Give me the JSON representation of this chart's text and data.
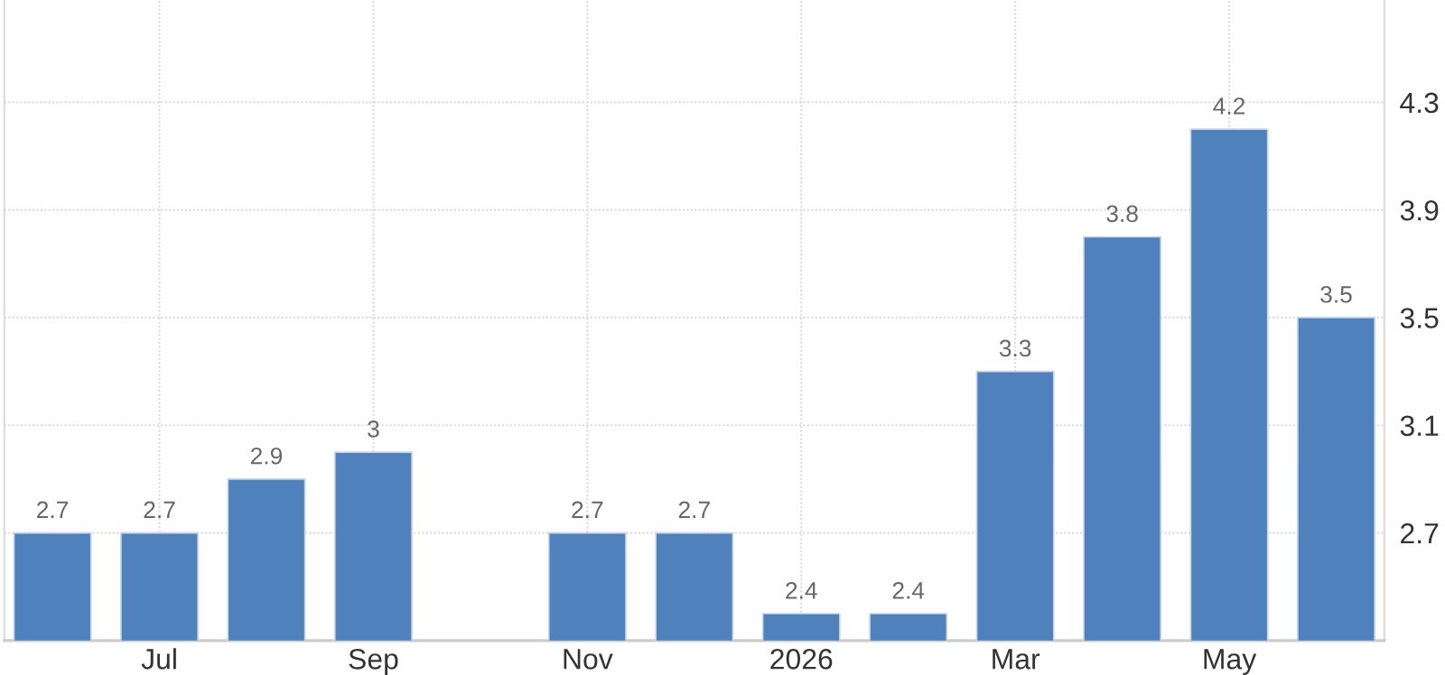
{
  "chart_data": {
    "type": "bar",
    "categories": [
      null,
      "Jul",
      null,
      "Sep",
      null,
      "Nov",
      null,
      "2026",
      null,
      "Mar",
      null,
      "May",
      null
    ],
    "values": [
      2.7,
      2.7,
      2.9,
      3,
      null,
      2.7,
      2.7,
      2.4,
      2.4,
      3.3,
      3.8,
      4.2,
      3.5
    ],
    "color": "#4f81bd",
    "ylim": [
      2.3,
      4.68
    ],
    "yticks": [
      2.7,
      3.1,
      3.5,
      3.9,
      4.3
    ],
    "grid": true,
    "data_labels": true
  }
}
